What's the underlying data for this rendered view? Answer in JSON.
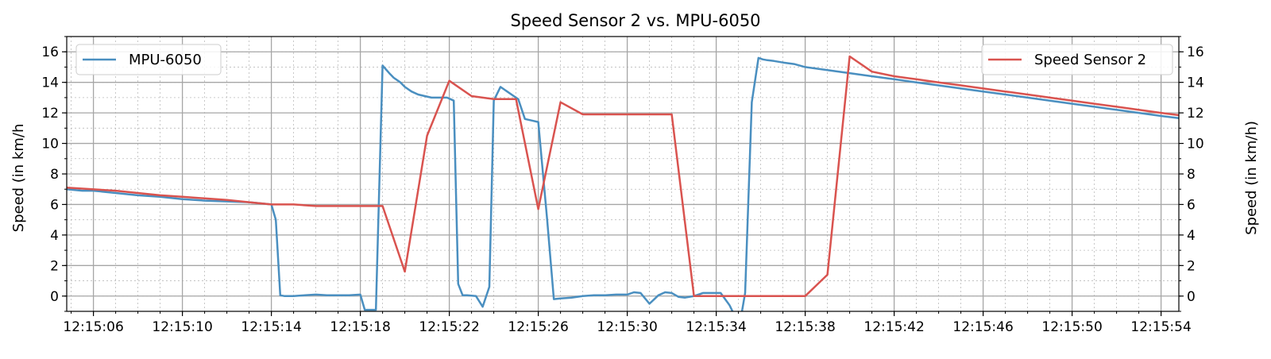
{
  "chart_data": {
    "type": "line",
    "title": "Speed Sensor 2 vs. MPU-6050",
    "xlabel": "",
    "ylabel_left": "Speed (in km/h",
    "ylabel_right": "Speed (in km/h)",
    "x_ticks": [
      "12:15:06",
      "12:15:10",
      "12:15:14",
      "12:15:18",
      "12:15:22",
      "12:15:26",
      "12:15:30",
      "12:15:34",
      "12:15:38",
      "12:15:42",
      "12:15:46",
      "12:15:50",
      "12:15:54"
    ],
    "x_tick_seconds": [
      6,
      10,
      14,
      18,
      22,
      26,
      30,
      34,
      38,
      42,
      46,
      50,
      54
    ],
    "xlim": [
      4.8,
      54.8
    ],
    "y_ticks": [
      0,
      2,
      4,
      6,
      8,
      10,
      12,
      14,
      16
    ],
    "ylim": [
      -1,
      17
    ],
    "grid": true,
    "minor_grid": true,
    "series": [
      {
        "name": "MPU-6050",
        "color": "#4a8fc0",
        "legend_position": "top-left",
        "x": [
          4.8,
          5.5,
          6,
          7,
          8,
          9,
          10,
          11,
          12,
          13,
          14,
          14.2,
          14.4,
          14.6,
          15,
          15.5,
          16,
          16.5,
          17,
          17.5,
          18,
          18.2,
          18.4,
          18.7,
          19.0,
          19.3,
          19.5,
          19.8,
          20,
          20.3,
          20.6,
          20.9,
          21.2,
          21.5,
          21.9,
          22.2,
          22.4,
          22.6,
          22.8,
          23.2,
          23.5,
          23.8,
          24,
          24.3,
          24.6,
          24.9,
          25.1,
          25.4,
          25.7,
          26,
          26.4,
          26.7,
          27,
          27.5,
          28,
          28.5,
          29,
          29.5,
          30,
          30.3,
          30.6,
          31,
          31.4,
          31.7,
          32,
          32.3,
          32.6,
          33,
          33.4,
          33.8,
          34.2,
          34.6,
          34.9,
          35.1,
          35.3,
          35.6,
          35.9,
          36.1,
          36.3,
          36.6,
          37,
          37.5,
          38,
          39,
          40,
          41,
          42,
          43,
          44,
          45,
          46,
          47,
          48,
          49,
          50,
          51,
          52,
          53,
          54,
          54.8
        ],
        "y": [
          7.0,
          6.9,
          6.9,
          6.75,
          6.6,
          6.5,
          6.35,
          6.25,
          6.2,
          6.15,
          6.0,
          5.0,
          0.05,
          0.0,
          0.0,
          0.05,
          0.1,
          0.05,
          0.05,
          0.05,
          0.1,
          -0.9,
          -0.9,
          -0.9,
          15.1,
          14.6,
          14.3,
          14.0,
          13.7,
          13.4,
          13.2,
          13.1,
          13.0,
          13.0,
          13.0,
          12.8,
          0.8,
          0.05,
          0.05,
          0.0,
          -0.7,
          0.6,
          12.8,
          13.7,
          13.4,
          13.1,
          12.9,
          11.6,
          11.5,
          11.4,
          5.0,
          -0.2,
          -0.15,
          -0.1,
          0.0,
          0.05,
          0.05,
          0.1,
          0.1,
          0.25,
          0.2,
          -0.5,
          0.05,
          0.25,
          0.2,
          -0.05,
          -0.1,
          0.0,
          0.2,
          0.2,
          0.2,
          -0.6,
          -1.5,
          -1.5,
          0.2,
          12.7,
          15.6,
          15.5,
          15.45,
          15.4,
          15.3,
          15.2,
          15.0,
          14.8,
          14.6,
          14.4,
          14.2,
          14.0,
          13.8,
          13.6,
          13.4,
          13.2,
          13.0,
          12.8,
          12.6,
          12.4,
          12.2,
          12.0,
          11.8,
          11.65
        ]
      },
      {
        "name": "Speed Sensor 2",
        "color": "#d9534f",
        "legend_position": "top-right",
        "x": [
          4.8,
          7,
          9,
          10,
          11,
          12,
          13,
          14,
          15,
          16,
          17,
          18,
          19,
          20,
          21,
          22,
          23,
          24,
          25,
          26,
          27,
          28,
          29,
          30,
          31,
          32,
          33,
          34,
          35,
          36,
          37,
          38,
          39,
          40,
          41,
          42,
          43,
          44,
          45,
          46,
          47,
          48,
          49,
          50,
          51,
          52,
          53,
          54,
          54.8
        ],
        "y": [
          7.1,
          6.9,
          6.6,
          6.5,
          6.4,
          6.3,
          6.15,
          6.0,
          6.0,
          5.9,
          5.9,
          5.9,
          5.9,
          1.6,
          10.5,
          14.1,
          13.1,
          12.9,
          12.9,
          5.7,
          12.7,
          11.9,
          11.9,
          11.9,
          11.9,
          11.9,
          0.0,
          0.0,
          0.0,
          0.0,
          0.0,
          0.0,
          1.4,
          15.7,
          14.7,
          14.4,
          14.2,
          14.0,
          13.8,
          13.6,
          13.4,
          13.2,
          13.0,
          12.8,
          12.6,
          12.4,
          12.2,
          12.0,
          11.85
        ]
      }
    ]
  }
}
